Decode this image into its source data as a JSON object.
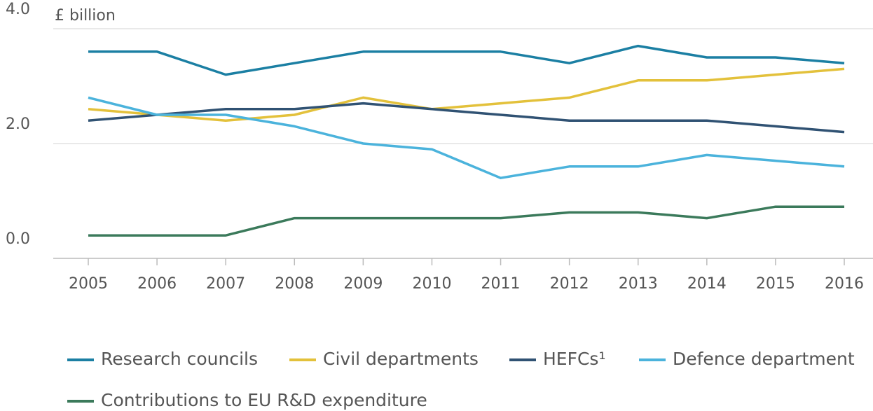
{
  "chart_data": {
    "type": "line",
    "y_label": "£ billion",
    "categories": [
      "2005",
      "2006",
      "2007",
      "2008",
      "2009",
      "2010",
      "2011",
      "2012",
      "2013",
      "2014",
      "2015",
      "2016"
    ],
    "series": [
      {
        "name": "Research councils",
        "color": "#1b7fa3",
        "values": [
          3.6,
          3.6,
          3.2,
          3.4,
          3.6,
          3.6,
          3.6,
          3.4,
          3.7,
          3.5,
          3.5,
          3.4
        ]
      },
      {
        "name": "Civil departments",
        "color": "#e3c13b",
        "values": [
          2.6,
          2.5,
          2.4,
          2.5,
          2.8,
          2.6,
          2.7,
          2.8,
          3.1,
          3.1,
          3.2,
          3.3
        ]
      },
      {
        "name": "HEFCs¹",
        "color": "#305273",
        "values": [
          2.4,
          2.5,
          2.6,
          2.6,
          2.7,
          2.6,
          2.5,
          2.4,
          2.4,
          2.4,
          2.3,
          2.2
        ]
      },
      {
        "name": "Defence department",
        "color": "#4bb3dc",
        "values": [
          2.8,
          2.5,
          2.5,
          2.3,
          2.0,
          1.9,
          1.4,
          1.6,
          1.6,
          1.8,
          1.7,
          1.6
        ]
      },
      {
        "name": "Contributions to EU R&D expenditure",
        "color": "#3b7a5b",
        "values": [
          0.4,
          0.4,
          0.4,
          0.7,
          0.7,
          0.7,
          0.7,
          0.8,
          0.8,
          0.7,
          0.9,
          0.9
        ]
      }
    ],
    "ylim": [
      0,
      4
    ],
    "yticks": [
      {
        "value": 0,
        "label": "0.0"
      },
      {
        "value": 2,
        "label": "2.0"
      },
      {
        "value": 4,
        "label": "4.0"
      }
    ],
    "grid": true
  }
}
